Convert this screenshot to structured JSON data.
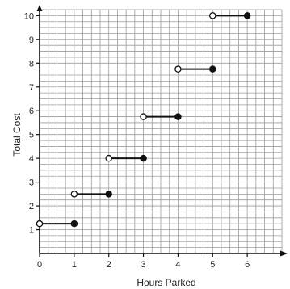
{
  "chart_data": {
    "type": "step",
    "title": "",
    "xlabel": "Hours Parked",
    "ylabel": "Total Cost",
    "xlim": [
      0,
      7
    ],
    "ylim": [
      0,
      10.25
    ],
    "grid": true,
    "grid_step": 0.25,
    "x_ticks": [
      "0",
      "1",
      "2",
      "3",
      "4",
      "5",
      "6"
    ],
    "y_ticks": [
      "1",
      "2",
      "3",
      "4",
      "5",
      "6",
      "7",
      "8",
      "9",
      "10"
    ],
    "segments": [
      {
        "x_start": 0,
        "x_end": 1,
        "y": 1.25,
        "start_open": true,
        "end_closed": true
      },
      {
        "x_start": 1,
        "x_end": 2,
        "y": 2.5,
        "start_open": true,
        "end_closed": true
      },
      {
        "x_start": 2,
        "x_end": 3,
        "y": 4,
        "start_open": true,
        "end_closed": true
      },
      {
        "x_start": 3,
        "x_end": 4,
        "y": 5.75,
        "start_open": true,
        "end_closed": true
      },
      {
        "x_start": 4,
        "x_end": 5,
        "y": 7.75,
        "start_open": true,
        "end_closed": true
      },
      {
        "x_start": 5,
        "x_end": 6,
        "y": 10,
        "start_open": true,
        "end_closed": true
      }
    ],
    "colors": {
      "grid": "#9a9a9a",
      "axis": "#111111",
      "series": "#111111",
      "open_fill": "#ffffff"
    }
  }
}
